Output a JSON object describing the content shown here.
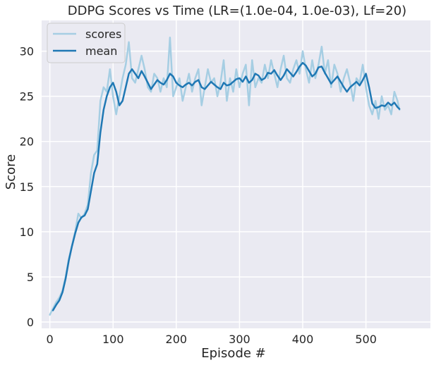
{
  "chart_data": {
    "type": "line",
    "title": "DDPG Scores vs Time (LR=(1.0e-04, 1.0e-03), Lf=20)",
    "xlabel": "Episode #",
    "ylabel": "Score",
    "xlim": [
      -13,
      602
    ],
    "ylim": [
      -0.7,
      33.4
    ],
    "xticks": [
      0,
      100,
      200,
      300,
      400,
      500
    ],
    "yticks": [
      0,
      5,
      10,
      15,
      20,
      25,
      30
    ],
    "grid": true,
    "legend_position": "top-left",
    "colors": {
      "background": "#eaeaf2",
      "grid": "#ffffff",
      "scores": "#a6cee3",
      "mean": "#1f78b4"
    },
    "series": [
      {
        "name": "scores",
        "x": [
          0,
          5,
          10,
          15,
          20,
          25,
          30,
          35,
          40,
          45,
          50,
          55,
          60,
          65,
          70,
          75,
          80,
          85,
          90,
          95,
          100,
          105,
          110,
          115,
          120,
          125,
          130,
          135,
          140,
          145,
          150,
          155,
          160,
          165,
          170,
          175,
          180,
          185,
          190,
          195,
          200,
          205,
          210,
          215,
          220,
          225,
          230,
          235,
          240,
          245,
          250,
          255,
          260,
          265,
          270,
          275,
          280,
          285,
          290,
          295,
          300,
          305,
          310,
          315,
          320,
          325,
          330,
          335,
          340,
          345,
          350,
          355,
          360,
          365,
          370,
          375,
          380,
          385,
          390,
          395,
          400,
          405,
          410,
          415,
          420,
          425,
          430,
          435,
          440,
          445,
          450,
          455,
          460,
          465,
          470,
          475,
          480,
          485,
          490,
          495,
          500,
          505,
          510,
          515,
          520,
          525,
          530,
          535,
          540,
          545,
          550,
          553
        ],
        "values": [
          0.8,
          1.5,
          2.2,
          2.7,
          3.5,
          5.0,
          7.0,
          8.5,
          10.0,
          12.0,
          11.5,
          12.0,
          13.0,
          16.5,
          18.5,
          19.0,
          24.5,
          26.0,
          25.5,
          28.0,
          25.0,
          23.0,
          25.0,
          27.0,
          28.5,
          31.0,
          27.0,
          26.5,
          28.0,
          29.5,
          28.0,
          26.0,
          25.5,
          27.5,
          27.0,
          25.5,
          27.0,
          26.0,
          31.5,
          25.0,
          26.0,
          27.0,
          24.5,
          26.0,
          27.5,
          25.5,
          27.0,
          28.0,
          24.0,
          26.0,
          28.0,
          26.5,
          27.0,
          25.0,
          26.5,
          29.0,
          24.5,
          27.0,
          25.5,
          28.0,
          26.0,
          27.5,
          28.5,
          24.0,
          29.0,
          26.0,
          27.0,
          26.5,
          28.5,
          27.0,
          29.0,
          27.5,
          26.0,
          28.0,
          29.5,
          27.0,
          26.5,
          28.0,
          29.0,
          27.5,
          30.0,
          28.0,
          26.5,
          29.0,
          27.0,
          28.5,
          30.5,
          27.5,
          29.0,
          26.0,
          28.5,
          27.5,
          25.5,
          27.0,
          28.0,
          26.5,
          24.5,
          27.0,
          26.5,
          28.5,
          26.0,
          24.0,
          23.0,
          24.5,
          22.5,
          25.0,
          23.5,
          24.0,
          23.0,
          25.5,
          24.5,
          23.5
        ]
      },
      {
        "name": "mean",
        "x": [
          5,
          10,
          15,
          20,
          25,
          30,
          35,
          40,
          45,
          50,
          55,
          60,
          65,
          70,
          75,
          80,
          85,
          90,
          95,
          100,
          105,
          110,
          115,
          120,
          125,
          130,
          135,
          140,
          145,
          150,
          155,
          160,
          165,
          170,
          175,
          180,
          185,
          190,
          195,
          200,
          205,
          210,
          215,
          220,
          225,
          230,
          235,
          240,
          245,
          250,
          255,
          260,
          265,
          270,
          275,
          280,
          285,
          290,
          295,
          300,
          305,
          310,
          315,
          320,
          325,
          330,
          335,
          340,
          345,
          350,
          355,
          360,
          365,
          370,
          375,
          380,
          385,
          390,
          395,
          400,
          405,
          410,
          415,
          420,
          425,
          430,
          435,
          440,
          445,
          450,
          455,
          460,
          465,
          470,
          475,
          480,
          485,
          490,
          495,
          500,
          505,
          510,
          515,
          520,
          525,
          530,
          535,
          540,
          545,
          550,
          553
        ],
        "values": [
          1.3,
          1.9,
          2.4,
          3.3,
          4.8,
          6.8,
          8.4,
          9.8,
          11.0,
          11.6,
          11.8,
          12.5,
          14.5,
          16.5,
          17.5,
          21.0,
          23.5,
          25.0,
          26.0,
          26.5,
          25.5,
          24.0,
          24.5,
          26.0,
          27.5,
          28.0,
          27.5,
          27.0,
          27.8,
          27.2,
          26.5,
          25.8,
          26.3,
          26.8,
          26.5,
          26.3,
          26.8,
          27.5,
          27.2,
          26.5,
          26.2,
          26.0,
          26.3,
          26.5,
          26.2,
          26.6,
          26.8,
          26.0,
          25.8,
          26.2,
          26.6,
          26.3,
          26.0,
          25.8,
          26.5,
          26.2,
          26.3,
          26.6,
          26.9,
          27.0,
          26.6,
          27.2,
          26.5,
          26.8,
          27.5,
          27.3,
          26.8,
          27.0,
          27.6,
          27.5,
          27.9,
          27.3,
          26.8,
          27.3,
          28.0,
          27.6,
          27.2,
          27.7,
          28.3,
          28.7,
          28.4,
          27.8,
          27.2,
          27.5,
          28.2,
          28.3,
          27.6,
          27.0,
          26.4,
          26.8,
          27.2,
          26.6,
          26.0,
          25.5,
          26.0,
          26.3,
          26.6,
          26.2,
          26.8,
          27.5,
          26.0,
          24.2,
          23.7,
          23.8,
          24.0,
          23.9,
          24.3,
          24.0,
          24.3,
          23.8,
          23.6
        ]
      }
    ]
  }
}
